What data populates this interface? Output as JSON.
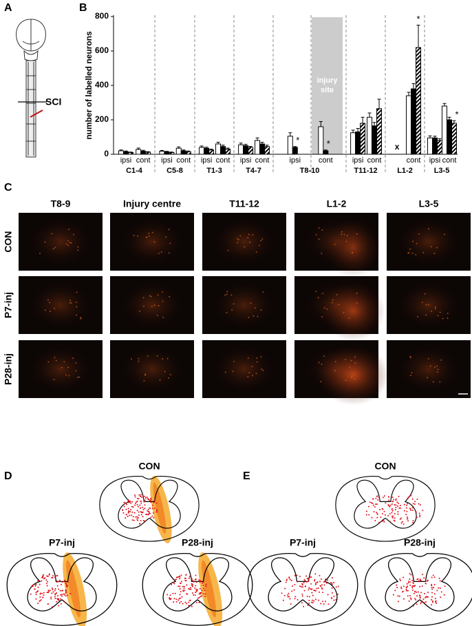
{
  "panel_labels": [
    "A",
    "B",
    "C",
    "D",
    "E"
  ],
  "panel_a": {
    "label": "SCI"
  },
  "chart_data": {
    "type": "bar",
    "y_label": "number of labelled neurons",
    "groups": [
      "C1-4",
      "C5-8",
      "T1-3",
      "T4-7",
      "T8-10",
      "T11-12",
      "L1-2",
      "L3-5"
    ],
    "categories": [
      "ipsi",
      "cont",
      "ipsi",
      "cont",
      "ipsi",
      "cont",
      "ipsi",
      "cont",
      "ipsi",
      "cont",
      "ipsi",
      "cont",
      null,
      "cont",
      "ipsi",
      "cont"
    ],
    "series": [
      {
        "color": "#ffffff",
        "hatched": false,
        "values": [
          20,
          28,
          18,
          35,
          40,
          60,
          55,
          80,
          105,
          160,
          125,
          215,
          null,
          340,
          95,
          280
        ],
        "errors": [
          5,
          8,
          4,
          8,
          8,
          10,
          10,
          15,
          20,
          30,
          15,
          25,
          null,
          20,
          12,
          15
        ]
      },
      {
        "color": "#000000",
        "hatched": false,
        "values": [
          15,
          18,
          14,
          20,
          35,
          45,
          50,
          60,
          40,
          20,
          130,
          165,
          null,
          380,
          95,
          200
        ],
        "errors": [
          4,
          5,
          3,
          5,
          6,
          8,
          8,
          10,
          5,
          5,
          20,
          20,
          null,
          30,
          10,
          15
        ]
      },
      {
        "color": "#000000",
        "hatched": true,
        "values": [
          10,
          12,
          10,
          15,
          25,
          30,
          40,
          45,
          null,
          null,
          180,
          265,
          null,
          620,
          80,
          180
        ],
        "errors": [
          3,
          3,
          3,
          4,
          5,
          6,
          6,
          8,
          null,
          null,
          35,
          55,
          null,
          130,
          10,
          15
        ]
      }
    ],
    "ylim": [
      0,
      800
    ],
    "yticks": [
      0,
      200,
      400,
      600,
      800
    ],
    "injury_label": "injury site",
    "missing_marker": {
      "label": "x",
      "index": 12
    },
    "significance": [
      {
        "series": 1,
        "index": 8,
        "label": "*"
      },
      {
        "series": 1,
        "index": 9,
        "label": "*"
      },
      {
        "series": 2,
        "index": 13,
        "label": "*"
      },
      {
        "series": 2,
        "index": 15,
        "label": "*"
      }
    ]
  },
  "panel_c": {
    "columns": [
      "T8-9",
      "Injury centre",
      "T11-12",
      "L1-2",
      "L3-5"
    ],
    "rows": [
      "CON",
      "P7-inj",
      "P28-inj"
    ]
  },
  "panel_d": {
    "cords": [
      "CON",
      "P7-inj",
      "P28-inj"
    ]
  },
  "panel_e": {
    "cords": [
      "CON",
      "P7-inj",
      "P28-inj"
    ]
  }
}
